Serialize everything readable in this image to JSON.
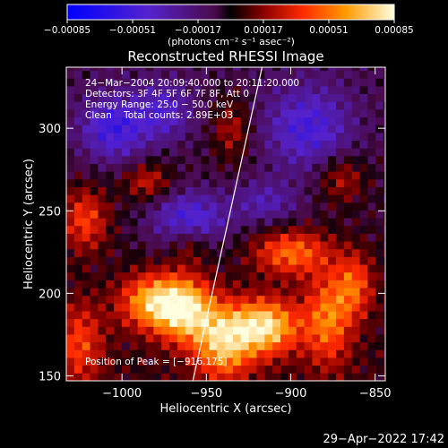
{
  "chart_data": {
    "type": "heatmap",
    "title": "Reconstructed RHESSI Image",
    "xlabel": "Heliocentric X (arcsec)",
    "ylabel": "Heliocentric Y (arcsec)",
    "xlim": [
      -1033,
      -844
    ],
    "ylim": [
      147,
      337
    ],
    "x_ticks": [
      -1000,
      -950,
      -900,
      -850
    ],
    "x_tick_labels": [
      "−1000",
      "−950",
      "−900",
      "−850"
    ],
    "y_ticks": [
      150,
      200,
      250,
      300
    ],
    "y_tick_labels": [
      "150",
      "200",
      "250",
      "300"
    ],
    "colorbar": {
      "range": [
        -0.00085,
        0.00085
      ],
      "ticks": [
        -0.00085,
        -0.00051,
        -0.00017,
        0.00017,
        0.00051,
        0.00085
      ],
      "tick_labels": [
        "−0.00085",
        "−0.00051",
        "−0.00017",
        "0.00017",
        "0.00051",
        "0.00085"
      ],
      "unit_label": "(photons cm⁻² s⁻¹ asec⁻²)"
    },
    "annotations": [
      "24−Mar−2004 20:09:40.000 to 20:11:20.000",
      "Detectors: 3F 4F 5F 6F 7F 8F, Att 0",
      "Energy Range: 25.0 − 50.0 keV",
      "Clean    Total counts: 2.89E+03"
    ],
    "peak_label": "Position of Peak = [−916,175]",
    "peak": [
      -916,
      175
    ],
    "limb_line": [
      [
        -958,
        147
      ],
      [
        -917,
        337
      ]
    ],
    "emission_blobs": [
      {
        "x": -982,
        "y": 195,
        "sx": 14,
        "sy": 12,
        "a": 0.75
      },
      {
        "x": -962,
        "y": 190,
        "sx": 12,
        "sy": 14,
        "a": 0.8
      },
      {
        "x": -940,
        "y": 170,
        "sx": 12,
        "sy": 16,
        "a": 0.75
      },
      {
        "x": -915,
        "y": 180,
        "sx": 14,
        "sy": 12,
        "a": 0.9
      },
      {
        "x": -900,
        "y": 225,
        "sx": 16,
        "sy": 10,
        "a": 0.6
      },
      {
        "x": -878,
        "y": 185,
        "sx": 10,
        "sy": 20,
        "a": 0.6
      },
      {
        "x": -862,
        "y": 205,
        "sx": 8,
        "sy": 14,
        "a": 0.5
      },
      {
        "x": -1022,
        "y": 245,
        "sx": 10,
        "sy": 14,
        "a": 0.5
      },
      {
        "x": -1025,
        "y": 170,
        "sx": 10,
        "sy": 18,
        "a": 0.45
      },
      {
        "x": -985,
        "y": 268,
        "sx": 10,
        "sy": 8,
        "a": 0.4
      },
      {
        "x": -935,
        "y": 300,
        "sx": 8,
        "sy": 14,
        "a": 0.35
      },
      {
        "x": -870,
        "y": 270,
        "sx": 10,
        "sy": 10,
        "a": 0.35
      },
      {
        "x": -960,
        "y": 230,
        "sx": 8,
        "sy": 8,
        "a": 0.3
      }
    ],
    "absorption_blobs": [
      {
        "x": -1005,
        "y": 300,
        "sx": 14,
        "sy": 14,
        "a": 0.55
      },
      {
        "x": -960,
        "y": 245,
        "sx": 16,
        "sy": 12,
        "a": 0.55
      },
      {
        "x": -890,
        "y": 300,
        "sx": 18,
        "sy": 18,
        "a": 0.5
      },
      {
        "x": -915,
        "y": 255,
        "sx": 14,
        "sy": 10,
        "a": 0.35
      },
      {
        "x": -975,
        "y": 310,
        "sx": 12,
        "sy": 12,
        "a": 0.4
      }
    ]
  },
  "footer": {
    "timestamp": "29−Apr−2022 17:42"
  }
}
